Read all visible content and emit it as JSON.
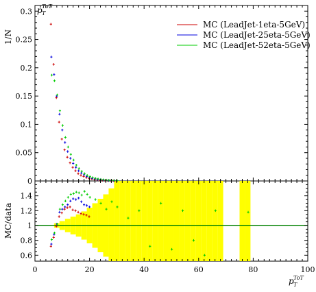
{
  "chart_data": [
    {
      "type": "scatter",
      "title": "",
      "ylabel": "1/N",
      "yaxis_title": "p_T^ToT",
      "xlim": [
        0,
        100
      ],
      "ylim": [
        0,
        0.31
      ],
      "yticks": [
        0,
        0.05,
        0.1,
        0.15,
        0.2,
        0.25,
        0.3
      ],
      "yticklabels": [
        "0",
        "0.05",
        "0.1",
        "0.15",
        "0.2",
        "0.25",
        "0.3"
      ],
      "legend_position": "top-right",
      "series": [
        {
          "name": "MC (LeadJet-1eta-5GeV)",
          "color": "#cc0000",
          "x": [
            6,
            7,
            8,
            9,
            10,
            11,
            12,
            13,
            14,
            15,
            16,
            17,
            18,
            19,
            20,
            21,
            22,
            23,
            24,
            25,
            26,
            27,
            28,
            29,
            30
          ],
          "y": [
            0.277,
            0.206,
            0.147,
            0.104,
            0.074,
            0.055,
            0.042,
            0.032,
            0.024,
            0.018,
            0.013,
            0.01,
            0.008,
            0.006,
            0.0045,
            0.0035,
            0.0027,
            0.002,
            0.0015,
            0.0011,
            0.0008,
            0.0006,
            0.0004,
            0.0003,
            0.0002
          ]
        },
        {
          "name": "MC (LeadJet-25eta-5GeV)",
          "color": "#0000dd",
          "x": [
            6,
            7,
            8,
            9,
            10,
            11,
            12,
            13,
            14,
            15,
            16,
            17,
            18,
            19,
            20,
            21,
            22,
            23,
            24,
            25,
            26,
            27,
            28,
            29,
            30
          ],
          "y": [
            0.219,
            0.188,
            0.15,
            0.118,
            0.09,
            0.068,
            0.052,
            0.04,
            0.031,
            0.024,
            0.018,
            0.014,
            0.011,
            0.008,
            0.006,
            0.0046,
            0.0035,
            0.0027,
            0.002,
            0.0015,
            0.0011,
            0.0008,
            0.0006,
            0.0004,
            0.0003
          ]
        },
        {
          "name": "MC (LeadJet-52eta-5GeV)",
          "color": "#00cc00",
          "x": [
            6,
            7,
            8,
            9,
            10,
            11,
            12,
            13,
            14,
            15,
            16,
            17,
            18,
            19,
            20,
            21,
            22,
            23,
            24,
            25,
            26,
            27,
            28,
            29,
            30
          ],
          "y": [
            0.187,
            0.177,
            0.152,
            0.124,
            0.098,
            0.077,
            0.06,
            0.047,
            0.037,
            0.028,
            0.022,
            0.017,
            0.013,
            0.01,
            0.0078,
            0.006,
            0.0047,
            0.0036,
            0.0028,
            0.0021,
            0.0016,
            0.0012,
            0.0009,
            0.0007,
            0.0005
          ]
        }
      ]
    },
    {
      "type": "scatter",
      "title": "",
      "ylabel": "MC/data",
      "xlabel": "p_T^ToT",
      "xlim": [
        0,
        100
      ],
      "ylim": [
        0.52,
        1.6
      ],
      "xticks": [
        0,
        20,
        40,
        60,
        80,
        100
      ],
      "xticklabels": [
        "0",
        "20",
        "40",
        "60",
        "80",
        "100"
      ],
      "yticks": [
        0.6,
        0.8,
        1,
        1.2,
        1.4
      ],
      "yticklabels": [
        "0.6",
        "0.8",
        "1",
        "1.2",
        "1.4"
      ],
      "reference_line": 1,
      "uncertainty_band": {
        "color": "#ffff00",
        "x": [
          6,
          8,
          10,
          12,
          14,
          16,
          18,
          20,
          22,
          24,
          26,
          28,
          30,
          32,
          34,
          36,
          38,
          40,
          42,
          44,
          46,
          48,
          50,
          52,
          54,
          56,
          58,
          60,
          62,
          64,
          66,
          68,
          76,
          78
        ],
        "half_width": [
          0.0,
          0.03,
          0.06,
          0.09,
          0.12,
          0.15,
          0.19,
          0.24,
          0.3,
          0.36,
          0.42,
          0.5,
          0.6,
          0.6,
          0.6,
          0.6,
          0.6,
          0.6,
          0.6,
          0.6,
          0.6,
          0.6,
          0.6,
          0.6,
          0.6,
          0.6,
          0.6,
          0.6,
          0.6,
          0.6,
          0.6,
          0.6,
          0.6,
          0.6
        ]
      },
      "series": [
        {
          "name": "MC (LeadJet-1eta-5GeV)",
          "color": "#cc0000",
          "x": [
            6,
            7,
            8,
            9,
            10,
            11,
            12,
            13,
            14,
            15,
            16,
            17,
            18,
            19,
            20
          ],
          "y": [
            0.72,
            0.84,
            0.99,
            1.12,
            1.17,
            1.22,
            1.24,
            1.25,
            1.21,
            1.2,
            1.18,
            1.16,
            1.15,
            1.14,
            1.12
          ]
        },
        {
          "name": "MC (LeadJet-25eta-5GeV)",
          "color": "#0000dd",
          "x": [
            6,
            7,
            8,
            9,
            10,
            11,
            12,
            13,
            14,
            15,
            16,
            17,
            18,
            19,
            20
          ],
          "y": [
            0.75,
            0.88,
            1.02,
            1.18,
            1.22,
            1.25,
            1.28,
            1.33,
            1.36,
            1.35,
            1.37,
            1.32,
            1.28,
            1.27,
            1.25
          ]
        },
        {
          "name": "MC (LeadJet-52eta-5GeV)",
          "color": "#00cc00",
          "x": [
            6,
            7,
            8,
            9,
            10,
            11,
            12,
            13,
            14,
            15,
            16,
            17,
            18,
            19,
            20,
            22,
            24,
            26,
            28,
            30,
            34,
            38,
            42,
            46,
            50,
            54,
            58,
            62,
            66,
            78
          ],
          "y": [
            0.81,
            0.9,
            1.02,
            1.22,
            1.28,
            1.33,
            1.38,
            1.42,
            1.43,
            1.45,
            1.44,
            1.41,
            1.46,
            1.42,
            1.38,
            1.35,
            1.3,
            1.22,
            1.32,
            1.25,
            1.1,
            1.2,
            0.72,
            1.3,
            0.68,
            1.2,
            0.8,
            0.6,
            1.2,
            1.18
          ]
        }
      ]
    }
  ]
}
